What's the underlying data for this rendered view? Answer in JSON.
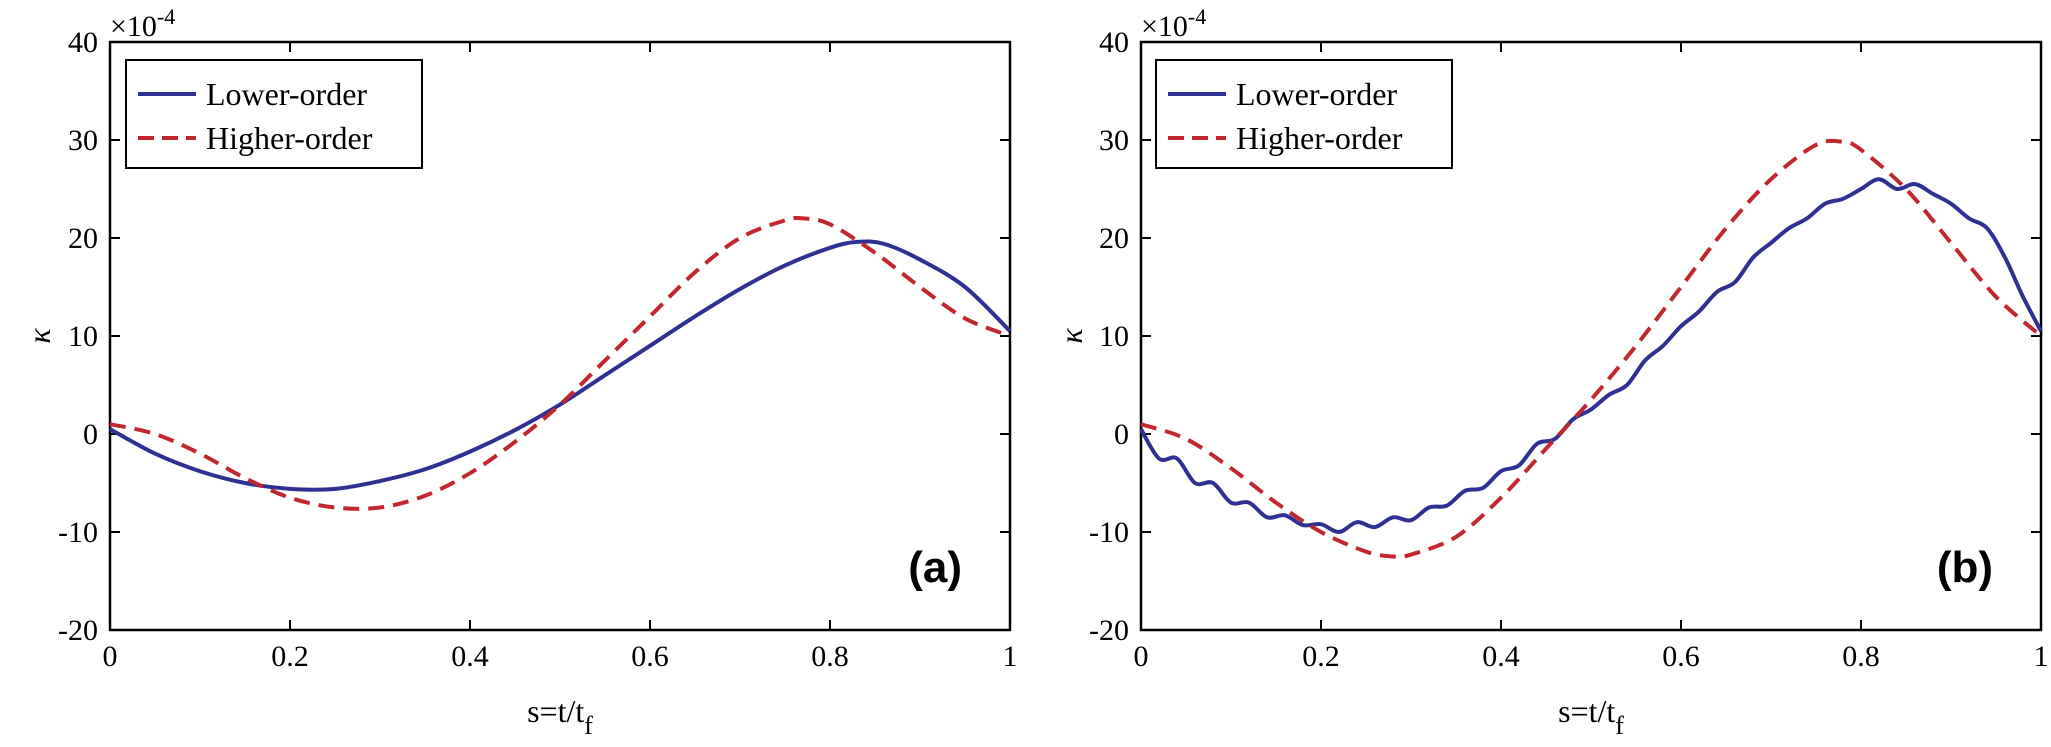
{
  "chart_data": [
    {
      "type": "line",
      "panel_label": "(a)",
      "xlabel": "s=t/t",
      "xlabel_sub": "f",
      "ylabel": "κ",
      "exponent_label": "×10",
      "exponent_power": "-4",
      "xlim": [
        0,
        1
      ],
      "ylim": [
        -20,
        40
      ],
      "xticks": [
        "0",
        "0.2",
        "0.4",
        "0.6",
        "0.8",
        "1"
      ],
      "yticks": [
        "-20",
        "-10",
        "0",
        "10",
        "20",
        "30",
        "40"
      ],
      "grid": false,
      "legend_position": "top-left",
      "series": [
        {
          "name": "Lower-order",
          "color": "#2e3192",
          "dash": "solid",
          "x": [
            0,
            0.05,
            0.1,
            0.15,
            0.2,
            0.25,
            0.3,
            0.35,
            0.4,
            0.45,
            0.5,
            0.55,
            0.6,
            0.65,
            0.7,
            0.75,
            0.8,
            0.83,
            0.86,
            0.9,
            0.95,
            1.0
          ],
          "values": [
            0.5,
            -2.0,
            -3.8,
            -5.0,
            -5.6,
            -5.6,
            -4.8,
            -3.6,
            -1.8,
            0.4,
            3.0,
            6.0,
            9.0,
            12.0,
            14.8,
            17.2,
            19.0,
            19.6,
            19.4,
            17.8,
            15.0,
            10.5
          ]
        },
        {
          "name": "Higher-order",
          "color": "#c1272d",
          "dash": "dashed",
          "x": [
            0,
            0.05,
            0.1,
            0.15,
            0.2,
            0.25,
            0.3,
            0.35,
            0.4,
            0.45,
            0.5,
            0.55,
            0.6,
            0.65,
            0.7,
            0.75,
            0.77,
            0.8,
            0.85,
            0.9,
            0.95,
            1.0
          ],
          "values": [
            1.0,
            0.0,
            -2.0,
            -4.5,
            -6.5,
            -7.5,
            -7.5,
            -6.3,
            -4.0,
            -0.8,
            3.0,
            7.5,
            12.0,
            16.5,
            20.0,
            21.8,
            22.0,
            21.4,
            18.5,
            15.0,
            11.8,
            10.0
          ]
        }
      ]
    },
    {
      "type": "line",
      "panel_label": "(b)",
      "xlabel": "s=t/t",
      "xlabel_sub": "f",
      "ylabel": "κ",
      "exponent_label": "×10",
      "exponent_power": "-4",
      "xlim": [
        0,
        1
      ],
      "ylim": [
        -20,
        40
      ],
      "xticks": [
        "0",
        "0.2",
        "0.4",
        "0.6",
        "0.8",
        "1"
      ],
      "yticks": [
        "-20",
        "-10",
        "0",
        "10",
        "20",
        "30",
        "40"
      ],
      "grid": false,
      "legend_position": "top-left",
      "series": [
        {
          "name": "Lower-order",
          "color": "#2e3192",
          "dash": "solid",
          "x": [
            0,
            0.02,
            0.04,
            0.06,
            0.08,
            0.1,
            0.12,
            0.14,
            0.16,
            0.18,
            0.2,
            0.22,
            0.24,
            0.26,
            0.28,
            0.3,
            0.32,
            0.34,
            0.36,
            0.38,
            0.4,
            0.42,
            0.44,
            0.46,
            0.48,
            0.5,
            0.52,
            0.54,
            0.56,
            0.58,
            0.6,
            0.62,
            0.64,
            0.66,
            0.68,
            0.7,
            0.72,
            0.74,
            0.76,
            0.78,
            0.8,
            0.82,
            0.84,
            0.86,
            0.88,
            0.9,
            0.92,
            0.94,
            0.96,
            0.98,
            1.0
          ],
          "values": [
            0.5,
            -2.5,
            -2.5,
            -5.0,
            -5.0,
            -7.0,
            -7.0,
            -8.5,
            -8.3,
            -9.3,
            -9.2,
            -10.0,
            -9.0,
            -9.5,
            -8.5,
            -8.8,
            -7.5,
            -7.3,
            -5.8,
            -5.5,
            -3.8,
            -3.2,
            -1.0,
            -0.5,
            1.5,
            2.5,
            4.0,
            5.0,
            7.5,
            9.0,
            11.0,
            12.5,
            14.5,
            15.5,
            18.0,
            19.5,
            21.0,
            22.0,
            23.5,
            24.0,
            25.0,
            26.0,
            25.0,
            25.5,
            24.5,
            23.5,
            22.0,
            21.0,
            18.0,
            14.0,
            10.5
          ]
        },
        {
          "name": "Higher-order",
          "color": "#c1272d",
          "dash": "dashed",
          "x": [
            0,
            0.05,
            0.1,
            0.15,
            0.2,
            0.25,
            0.28,
            0.3,
            0.35,
            0.4,
            0.45,
            0.5,
            0.55,
            0.6,
            0.65,
            0.7,
            0.75,
            0.78,
            0.8,
            0.85,
            0.9,
            0.95,
            1.0
          ],
          "values": [
            1.0,
            -0.5,
            -3.5,
            -7.0,
            -10.0,
            -12.0,
            -12.5,
            -12.3,
            -10.5,
            -6.5,
            -1.5,
            3.5,
            9.0,
            15.0,
            21.0,
            26.0,
            29.5,
            29.8,
            29.0,
            25.0,
            19.5,
            14.0,
            10.0
          ]
        }
      ]
    }
  ]
}
